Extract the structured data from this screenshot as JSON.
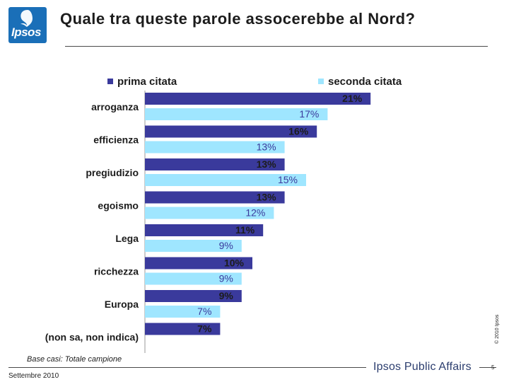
{
  "header": {
    "logo_text": "Ipsos",
    "title": "Quale tra queste parole assocerebbe al Nord?"
  },
  "footer": {
    "base": "Base casi: Totale campione",
    "date": "Settembre 2010",
    "brand": "Ipsos Public Affairs",
    "page_number": "5",
    "copyright": "© 2010 Ipsos"
  },
  "colors": {
    "series1": "#3a3a9c",
    "series2": "#9fe6ff",
    "text": "#1c1c1c"
  },
  "chart_data": {
    "type": "bar",
    "orientation": "horizontal",
    "title": "Quale tra queste parole assocerebbe al Nord?",
    "xlabel": "",
    "ylabel": "",
    "xlim": [
      0,
      21
    ],
    "value_suffix": "%",
    "legend_position": "top",
    "categories": [
      "arroganza",
      "efficienza",
      "pregiudizio",
      "egoismo",
      "Lega",
      "ricchezza",
      "Europa",
      "(non sa, non indica)"
    ],
    "series": [
      {
        "name": "prima citata",
        "values": [
          21,
          16,
          13,
          13,
          11,
          10,
          9,
          7
        ]
      },
      {
        "name": "seconda citata",
        "values": [
          17,
          13,
          15,
          12,
          9,
          9,
          7,
          null
        ]
      }
    ]
  }
}
